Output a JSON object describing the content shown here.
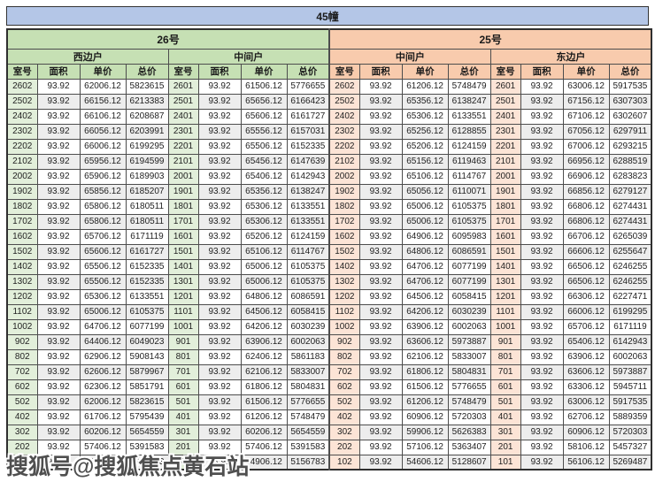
{
  "title": "45幢",
  "watermark": "搜狐号@搜狐焦点黄石站",
  "columns": [
    "室号",
    "面积",
    "单价",
    "总价"
  ],
  "groups": [
    {
      "building": "26号",
      "unit_types": [
        "西边户",
        "中间户"
      ]
    },
    {
      "building": "25号",
      "unit_types": [
        "中间户",
        "东边户"
      ]
    }
  ],
  "colors": {
    "title_bg": "#B4C6E7",
    "green_header": "#C6E0B4",
    "green_room": "#E2EFDA",
    "orange_header": "#F8CBAD",
    "orange_room": "#FCE4D6",
    "alt_row": "#EDEDED",
    "border": "#4d4d4d"
  },
  "rows": [
    [
      "2602",
      "93.92",
      "62006.12",
      "5823615",
      "2601",
      "93.92",
      "61506.12",
      "5776655",
      "2602",
      "93.92",
      "61206.12",
      "5748479",
      "2601",
      "93.92",
      "63006.12",
      "5917535"
    ],
    [
      "2502",
      "93.92",
      "66156.12",
      "6213383",
      "2501",
      "93.92",
      "65656.12",
      "6166423",
      "2502",
      "93.92",
      "65356.12",
      "6138247",
      "2501",
      "93.92",
      "67156.12",
      "6307303"
    ],
    [
      "2402",
      "93.92",
      "66106.12",
      "6208687",
      "2401",
      "93.92",
      "65606.12",
      "6161727",
      "2402",
      "93.92",
      "65306.12",
      "6133551",
      "2401",
      "93.92",
      "67106.12",
      "6302607"
    ],
    [
      "2302",
      "93.92",
      "66056.12",
      "6203991",
      "2301",
      "93.92",
      "65556.12",
      "6157031",
      "2302",
      "93.92",
      "65256.12",
      "6128855",
      "2301",
      "93.92",
      "67056.12",
      "6297911"
    ],
    [
      "2202",
      "93.92",
      "66006.12",
      "6199295",
      "2201",
      "93.92",
      "65506.12",
      "6152335",
      "2202",
      "93.92",
      "65206.12",
      "6124159",
      "2201",
      "93.92",
      "67006.12",
      "6293215"
    ],
    [
      "2102",
      "93.92",
      "65956.12",
      "6194599",
      "2101",
      "93.92",
      "65456.12",
      "6147639",
      "2102",
      "93.92",
      "65156.12",
      "6119463",
      "2101",
      "93.92",
      "66956.12",
      "6288519"
    ],
    [
      "2002",
      "93.92",
      "65906.12",
      "6189903",
      "2001",
      "93.92",
      "65406.12",
      "6142943",
      "2002",
      "93.92",
      "65106.12",
      "6114767",
      "2001",
      "93.92",
      "66906.12",
      "6283823"
    ],
    [
      "1902",
      "93.92",
      "65856.12",
      "6185207",
      "1901",
      "93.92",
      "65356.12",
      "6138247",
      "1902",
      "93.92",
      "65056.12",
      "6110071",
      "1901",
      "93.92",
      "66856.12",
      "6279127"
    ],
    [
      "1802",
      "93.92",
      "65806.12",
      "6180511",
      "1801",
      "93.92",
      "65306.12",
      "6133551",
      "1802",
      "93.92",
      "65006.12",
      "6105375",
      "1801",
      "93.92",
      "66806.12",
      "6274431"
    ],
    [
      "1702",
      "93.92",
      "65806.12",
      "6180511",
      "1701",
      "93.92",
      "65306.12",
      "6133551",
      "1702",
      "93.92",
      "65006.12",
      "6105375",
      "1701",
      "93.92",
      "66806.12",
      "6274431"
    ],
    [
      "1602",
      "93.92",
      "65706.12",
      "6171119",
      "1601",
      "93.92",
      "65206.12",
      "6124159",
      "1602",
      "93.92",
      "64906.12",
      "6095983",
      "1601",
      "93.92",
      "66706.12",
      "6265039"
    ],
    [
      "1502",
      "93.92",
      "65606.12",
      "6161727",
      "1501",
      "93.92",
      "65106.12",
      "6114767",
      "1502",
      "93.92",
      "64806.12",
      "6086591",
      "1501",
      "93.92",
      "66606.12",
      "6255647"
    ],
    [
      "1402",
      "93.92",
      "65506.12",
      "6152335",
      "1401",
      "93.92",
      "65006.12",
      "6105375",
      "1402",
      "93.92",
      "64706.12",
      "6077199",
      "1401",
      "93.92",
      "66506.12",
      "6246255"
    ],
    [
      "1302",
      "93.92",
      "65506.12",
      "6152335",
      "1301",
      "93.92",
      "65006.12",
      "6105375",
      "1302",
      "93.92",
      "64706.12",
      "6077199",
      "1301",
      "93.92",
      "66506.12",
      "6246255"
    ],
    [
      "1202",
      "93.92",
      "65306.12",
      "6133551",
      "1201",
      "93.92",
      "64806.12",
      "6086591",
      "1202",
      "93.92",
      "64506.12",
      "6058415",
      "1201",
      "93.92",
      "66306.12",
      "6227471"
    ],
    [
      "1102",
      "93.92",
      "65006.12",
      "6105375",
      "1101",
      "93.92",
      "64506.12",
      "6058415",
      "1102",
      "93.92",
      "64206.12",
      "6030239",
      "1101",
      "93.92",
      "66006.12",
      "6199295"
    ],
    [
      "1002",
      "93.92",
      "64706.12",
      "6077199",
      "1001",
      "93.92",
      "64206.12",
      "6030239",
      "1002",
      "93.92",
      "63906.12",
      "6002063",
      "1001",
      "93.92",
      "65706.12",
      "6171119"
    ],
    [
      "902",
      "93.92",
      "64406.12",
      "6049023",
      "901",
      "93.92",
      "63906.12",
      "6002063",
      "902",
      "93.92",
      "63606.12",
      "5973887",
      "901",
      "93.92",
      "65406.12",
      "6142943"
    ],
    [
      "802",
      "93.92",
      "62906.12",
      "5908143",
      "801",
      "93.92",
      "62406.12",
      "5861183",
      "802",
      "93.92",
      "62106.12",
      "5833007",
      "801",
      "93.92",
      "63906.12",
      "6002063"
    ],
    [
      "702",
      "93.92",
      "62606.12",
      "5879967",
      "701",
      "93.92",
      "62106.12",
      "5833007",
      "702",
      "93.92",
      "61806.12",
      "5804831",
      "701",
      "93.92",
      "63606.12",
      "5973887"
    ],
    [
      "602",
      "93.92",
      "62306.12",
      "5851791",
      "601",
      "93.92",
      "61806.12",
      "5804831",
      "602",
      "93.92",
      "61506.12",
      "5776655",
      "601",
      "93.92",
      "63306.12",
      "5945711"
    ],
    [
      "502",
      "93.92",
      "62006.12",
      "5823615",
      "501",
      "93.92",
      "61506.12",
      "5776655",
      "502",
      "93.92",
      "61206.12",
      "5748479",
      "501",
      "93.92",
      "63006.12",
      "5917535"
    ],
    [
      "402",
      "93.92",
      "61706.12",
      "5795439",
      "401",
      "93.92",
      "61206.12",
      "5748479",
      "402",
      "93.92",
      "60906.12",
      "5720303",
      "401",
      "93.92",
      "62706.12",
      "5889359"
    ],
    [
      "302",
      "93.92",
      "60206.12",
      "5654559",
      "301",
      "93.92",
      "60206.12",
      "5654559",
      "302",
      "93.92",
      "59906.12",
      "5626383",
      "301",
      "93.92",
      "60906.12",
      "5720303"
    ],
    [
      "202",
      "93.92",
      "57406.12",
      "5391583",
      "201",
      "93.92",
      "57406.12",
      "5391583",
      "202",
      "93.92",
      "57106.12",
      "5363407",
      "201",
      "93.92",
      "58106.12",
      "5457327"
    ],
    [
      "102",
      "93.92",
      "55406.12",
      "5203743",
      "101",
      "93.92",
      "54906.12",
      "5156783",
      "102",
      "93.92",
      "54606.12",
      "5128607",
      "101",
      "93.92",
      "56106.12",
      "5269487"
    ]
  ]
}
